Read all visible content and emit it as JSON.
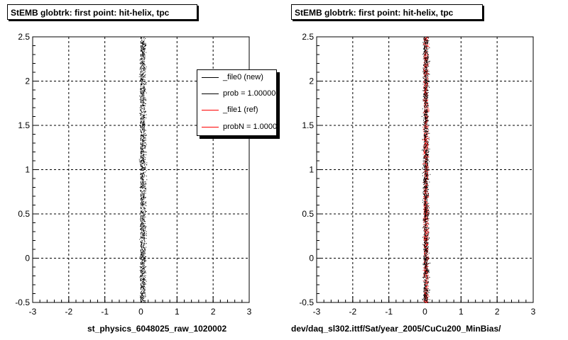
{
  "chart_data": [
    {
      "type": "scatter",
      "title": "StEMB globtrk: first point: hit-helix, tpc",
      "xlabel": "st_physics_6048025_raw_1020002",
      "ylabel": "",
      "xlim": [
        -3,
        3
      ],
      "ylim": [
        -0.5,
        2.5
      ],
      "x_ticks": [
        "-3",
        "-2",
        "-1",
        "0",
        "1",
        "2",
        "3"
      ],
      "y_ticks": [
        "-0.5",
        "0",
        "0.5",
        "1",
        "1.5",
        "2",
        "2.5"
      ],
      "grid": true,
      "series": [
        {
          "name": "_file0 (new)",
          "color": "#000000",
          "x_center": 0.05,
          "x_spread": 0.12,
          "y_range": [
            -0.5,
            2.5
          ]
        }
      ],
      "legend": {
        "position": "top-right",
        "entries": [
          {
            "label": "_file0 (new)",
            "color": "#000000"
          },
          {
            "label": "prob = 1.000000",
            "color": "#000000"
          },
          {
            "label": "_file1 (ref)",
            "color": "#ff0000"
          },
          {
            "label": "probN = 1.000000",
            "color": "#ff0000"
          }
        ]
      }
    },
    {
      "type": "scatter",
      "title": "StEMB globtrk: first point: hit-helix, tpc",
      "xlabel": "dev/daq_sl302.ittf/Sat/year_2005/CuCu200_MinBias/",
      "ylabel": "",
      "xlim": [
        -3,
        3
      ],
      "ylim": [
        -0.5,
        2.5
      ],
      "x_ticks": [
        "-3",
        "-2",
        "-1",
        "0",
        "1",
        "2",
        "3"
      ],
      "y_ticks": [
        "-0.5",
        "0",
        "0.5",
        "1",
        "1.5",
        "2",
        "2.5"
      ],
      "grid": true,
      "series": [
        {
          "name": "_file1 (ref)",
          "color": "#ff0000",
          "x_center": 0.02,
          "x_spread": 0.1,
          "y_range": [
            -0.5,
            2.5
          ]
        },
        {
          "name": "_file0 (new)",
          "color": "#000000",
          "x_center": 0.02,
          "x_spread": 0.12,
          "y_range": [
            -0.5,
            2.5
          ]
        }
      ]
    }
  ]
}
